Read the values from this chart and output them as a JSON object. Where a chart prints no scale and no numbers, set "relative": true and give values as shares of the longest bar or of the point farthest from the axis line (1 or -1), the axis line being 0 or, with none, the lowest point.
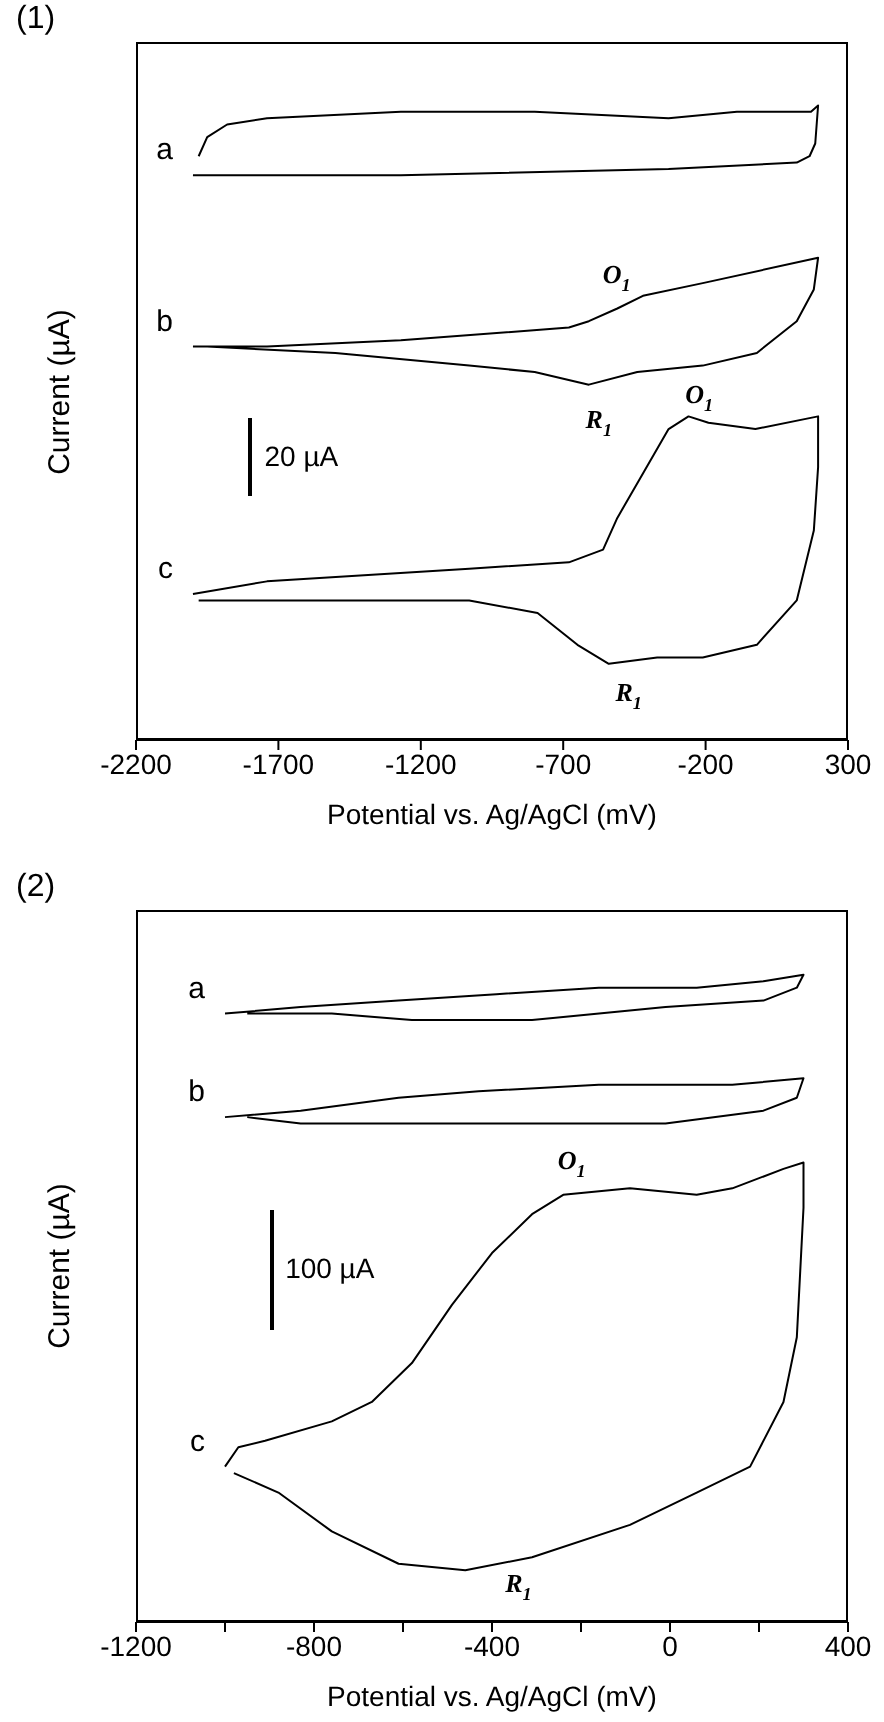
{
  "chart_data": [
    {
      "type": "line",
      "title": "(1)",
      "xlabel": "Potential vs. Ag/AgCl (mV)",
      "ylabel": "Current (µA)",
      "relative": true,
      "xlim": [
        -2200,
        300
      ],
      "xticks": [
        -2200,
        -1700,
        -1200,
        -700,
        -200,
        300
      ],
      "series": [
        {
          "name": "a",
          "color": "#000000",
          "x": [
            -2000,
            -1270,
            -330,
            120,
            165,
            185,
            195,
            170,
            -90,
            -330,
            -800,
            -1270,
            -1740,
            -1880,
            -1950,
            -1980
          ],
          "values": [
            0.89,
            0.89,
            0.9,
            0.91,
            0.92,
            0.94,
            1.0,
            0.99,
            0.99,
            0.98,
            0.99,
            0.99,
            0.98,
            0.97,
            0.95,
            0.92
          ]
        },
        {
          "name": "b",
          "color": "#000000",
          "x": [
            -2000,
            -1740,
            -1270,
            -680,
            -610,
            -510,
            -420,
            -210,
            195,
            180,
            120,
            -20,
            -210,
            -440,
            -610,
            -800,
            -1030,
            -1500,
            -1950
          ],
          "values": [
            0.62,
            0.62,
            0.63,
            0.65,
            0.66,
            0.68,
            0.7,
            0.72,
            0.76,
            0.71,
            0.66,
            0.61,
            0.59,
            0.58,
            0.56,
            0.58,
            0.59,
            0.61,
            0.62
          ]
        },
        {
          "name": "c",
          "color": "#000000",
          "x": [
            -2000,
            -1740,
            -1030,
            -680,
            -560,
            -510,
            -420,
            -330,
            -260,
            -190,
            -25,
            195,
            195,
            180,
            120,
            -20,
            -210,
            -370,
            -540,
            -650,
            -790,
            -1030,
            -1980
          ],
          "values": [
            0.23,
            0.25,
            0.27,
            0.28,
            0.3,
            0.35,
            0.42,
            0.49,
            0.51,
            0.5,
            0.49,
            0.51,
            0.43,
            0.33,
            0.22,
            0.15,
            0.13,
            0.13,
            0.12,
            0.15,
            0.2,
            0.22,
            0.22
          ]
        }
      ],
      "annotations": [
        "O$_{1}$",
        "R$_{1}$",
        "O$_{1}$",
        "R$_{1}$",
        "20 µA"
      ]
    },
    {
      "type": "line",
      "title": "(2)",
      "xlabel": "Potential vs. Ag/AgCl (mV)",
      "ylabel": "Current (µA)",
      "relative": true,
      "xlim": [
        -1200,
        400
      ],
      "xticks": [
        -1200,
        {
          "value": -1000,
          "label": null
        },
        -800,
        {
          "value": -600,
          "label": null
        },
        -400,
        {
          "value": -200,
          "label": null
        },
        0,
        {
          "value": 200,
          "label": null
        },
        400
      ],
      "series": [
        {
          "name": "a",
          "color": "#000000",
          "x": [
            -1000,
            -830,
            -610,
            -390,
            -160,
            60,
            210,
            300,
            285,
            210,
            -10,
            -310,
            -580,
            -760,
            -950
          ],
          "values": [
            0.94,
            0.95,
            0.96,
            0.97,
            0.98,
            0.98,
            0.99,
            1.0,
            0.98,
            0.96,
            0.95,
            0.93,
            0.93,
            0.94,
            0.94
          ]
        },
        {
          "name": "b",
          "color": "#000000",
          "x": [
            -1000,
            -830,
            -610,
            -430,
            -160,
            140,
            300,
            285,
            210,
            -10,
            -310,
            -610,
            -830,
            -950
          ],
          "values": [
            0.78,
            0.79,
            0.81,
            0.82,
            0.83,
            0.83,
            0.84,
            0.81,
            0.79,
            0.77,
            0.77,
            0.77,
            0.77,
            0.78
          ]
        },
        {
          "name": "c",
          "color": "#000000",
          "x": [
            -1000,
            -970,
            -910,
            -760,
            -670,
            -580,
            -490,
            -400,
            -310,
            -240,
            -90,
            60,
            140,
            255,
            300,
            300,
            285,
            255,
            180,
            60,
            -90,
            -310,
            -460,
            -610,
            -760,
            -880,
            -980
          ],
          "values": [
            0.24,
            0.27,
            0.28,
            0.31,
            0.34,
            0.4,
            0.49,
            0.57,
            0.63,
            0.66,
            0.67,
            0.66,
            0.67,
            0.7,
            0.71,
            0.64,
            0.44,
            0.34,
            0.24,
            0.2,
            0.15,
            0.1,
            0.08,
            0.09,
            0.14,
            0.2,
            0.23
          ]
        }
      ],
      "annotations": [
        "O$_{1}$",
        "R$_{1}$",
        "100 µA"
      ]
    }
  ]
}
